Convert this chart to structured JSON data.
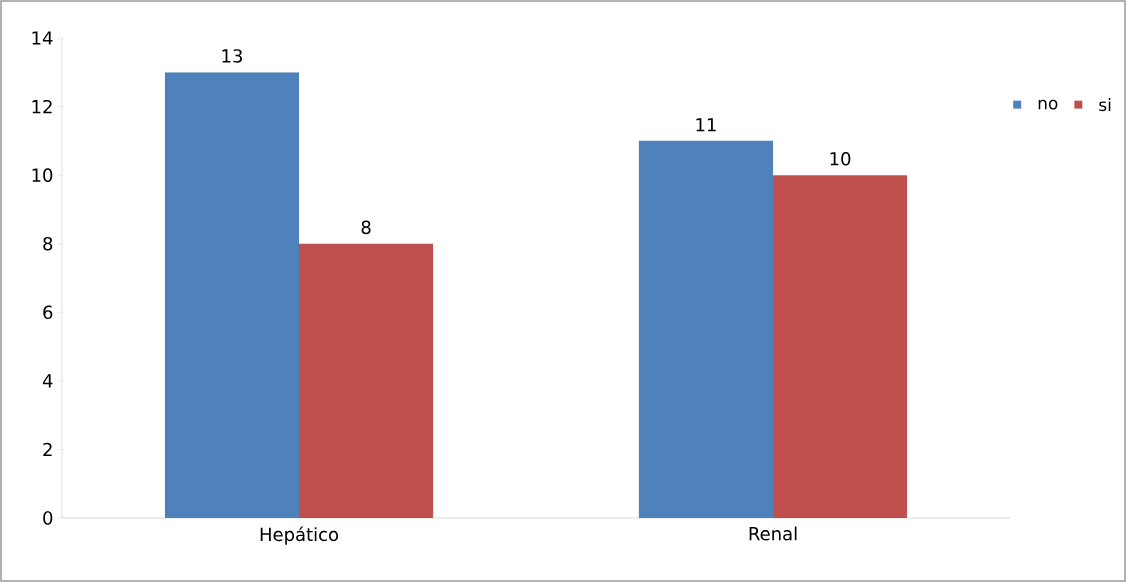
{
  "chart_data": {
    "type": "bar",
    "categories": [
      "Hepático",
      "Renal"
    ],
    "series": [
      {
        "name": "no",
        "color": "#4f81bd",
        "values": [
          13,
          11
        ]
      },
      {
        "name": "si",
        "color": "#c0504d",
        "values": [
          8,
          10
        ]
      }
    ],
    "ylim": [
      0,
      14
    ],
    "yticks": [
      0,
      2,
      4,
      6,
      8,
      10,
      12,
      14
    ],
    "data_labels": true,
    "legend": "top right"
  }
}
